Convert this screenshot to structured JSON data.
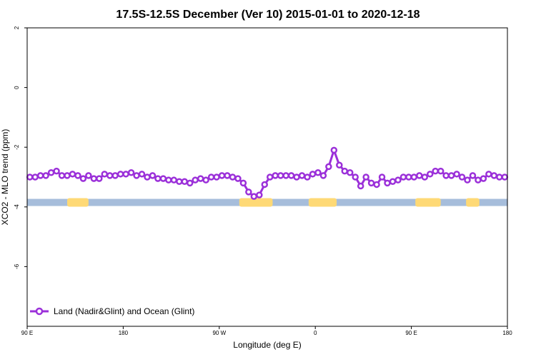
{
  "chart_data": {
    "type": "line",
    "title": "17.5S-12.5S December (Ver 10)   2015-01-01 to 2020-12-18",
    "xlabel": "Longitude (deg E)",
    "ylabel": "XCO2 - MLO trend (ppm)",
    "xlim": [
      90,
      450
    ],
    "ylim": [
      -8,
      2
    ],
    "x_ticks": [
      {
        "value": 90,
        "label": "90 E"
      },
      {
        "value": 162,
        "label": "180"
      },
      {
        "value": 234,
        "label": "90 W"
      },
      {
        "value": 306,
        "label": "0"
      },
      {
        "value": 378,
        "label": "90 E"
      },
      {
        "value": 450,
        "label": "180"
      }
    ],
    "y_ticks": [
      {
        "value": 2,
        "label": "2"
      },
      {
        "value": 0,
        "label": "0"
      },
      {
        "value": -2,
        "label": "-2"
      },
      {
        "value": -4,
        "label": "-4"
      },
      {
        "value": -6,
        "label": "-6"
      }
    ],
    "legend": {
      "position": "bottom-left",
      "entries": [
        "Land (Nadir&Glint) and Ocean (Glint)"
      ]
    },
    "series": [
      {
        "name": "Land (Nadir&Glint) and Ocean (Glint)",
        "color": "#9b30d9",
        "x": [
          92,
          96,
          100,
          104,
          108,
          112,
          116,
          120,
          124,
          128,
          132,
          136,
          140,
          144,
          148,
          152,
          156,
          160,
          164,
          168,
          172,
          176,
          180,
          184,
          188,
          192,
          196,
          200,
          204,
          208,
          212,
          216,
          220,
          224,
          228,
          232,
          236,
          240,
          244,
          248,
          252,
          256,
          260,
          264,
          268,
          272,
          276,
          280,
          284,
          288,
          292,
          296,
          300,
          304,
          308,
          312,
          316,
          320,
          324,
          328,
          332,
          336,
          340,
          344,
          348,
          352,
          356,
          360,
          364,
          368,
          372,
          376,
          380,
          384,
          388,
          392,
          396,
          400,
          404,
          408,
          412,
          416,
          420,
          424,
          428,
          432,
          436,
          440,
          444,
          448
        ],
        "y": [
          -3.0,
          -3.0,
          -2.95,
          -2.95,
          -2.85,
          -2.8,
          -2.95,
          -2.95,
          -2.9,
          -2.95,
          -3.05,
          -2.95,
          -3.05,
          -3.05,
          -2.9,
          -2.95,
          -2.95,
          -2.9,
          -2.9,
          -2.85,
          -2.95,
          -2.9,
          -3.0,
          -2.95,
          -3.05,
          -3.05,
          -3.1,
          -3.1,
          -3.15,
          -3.15,
          -3.2,
          -3.1,
          -3.05,
          -3.1,
          -3.0,
          -3.0,
          -2.95,
          -2.95,
          -3.0,
          -3.05,
          -3.2,
          -3.5,
          -3.65,
          -3.6,
          -3.25,
          -3.0,
          -2.95,
          -2.95,
          -2.95,
          -2.95,
          -3.0,
          -2.95,
          -3.0,
          -2.9,
          -2.85,
          -2.95,
          -2.65,
          -2.1,
          -2.6,
          -2.8,
          -2.85,
          -3.0,
          -3.3,
          -3.0,
          -3.2,
          -3.25,
          -3.0,
          -3.2,
          -3.15,
          -3.1,
          -3.0,
          -3.0,
          -3.0,
          -2.95,
          -3.0,
          -2.9,
          -2.8,
          -2.8,
          -2.95,
          -2.95,
          -2.9,
          -3.0,
          -3.1,
          -2.95,
          -3.1,
          -3.05,
          -2.9,
          -2.95,
          -3.0,
          -3.0
        ]
      }
    ],
    "surface_bar": {
      "y_center": -3.85,
      "ocean_color": "#a6bddb",
      "land_color": "#fed976",
      "land_segments": [
        [
          120,
          136
        ],
        [
          249,
          274
        ],
        [
          301,
          322
        ],
        [
          381,
          400
        ],
        [
          419,
          429
        ]
      ]
    }
  }
}
